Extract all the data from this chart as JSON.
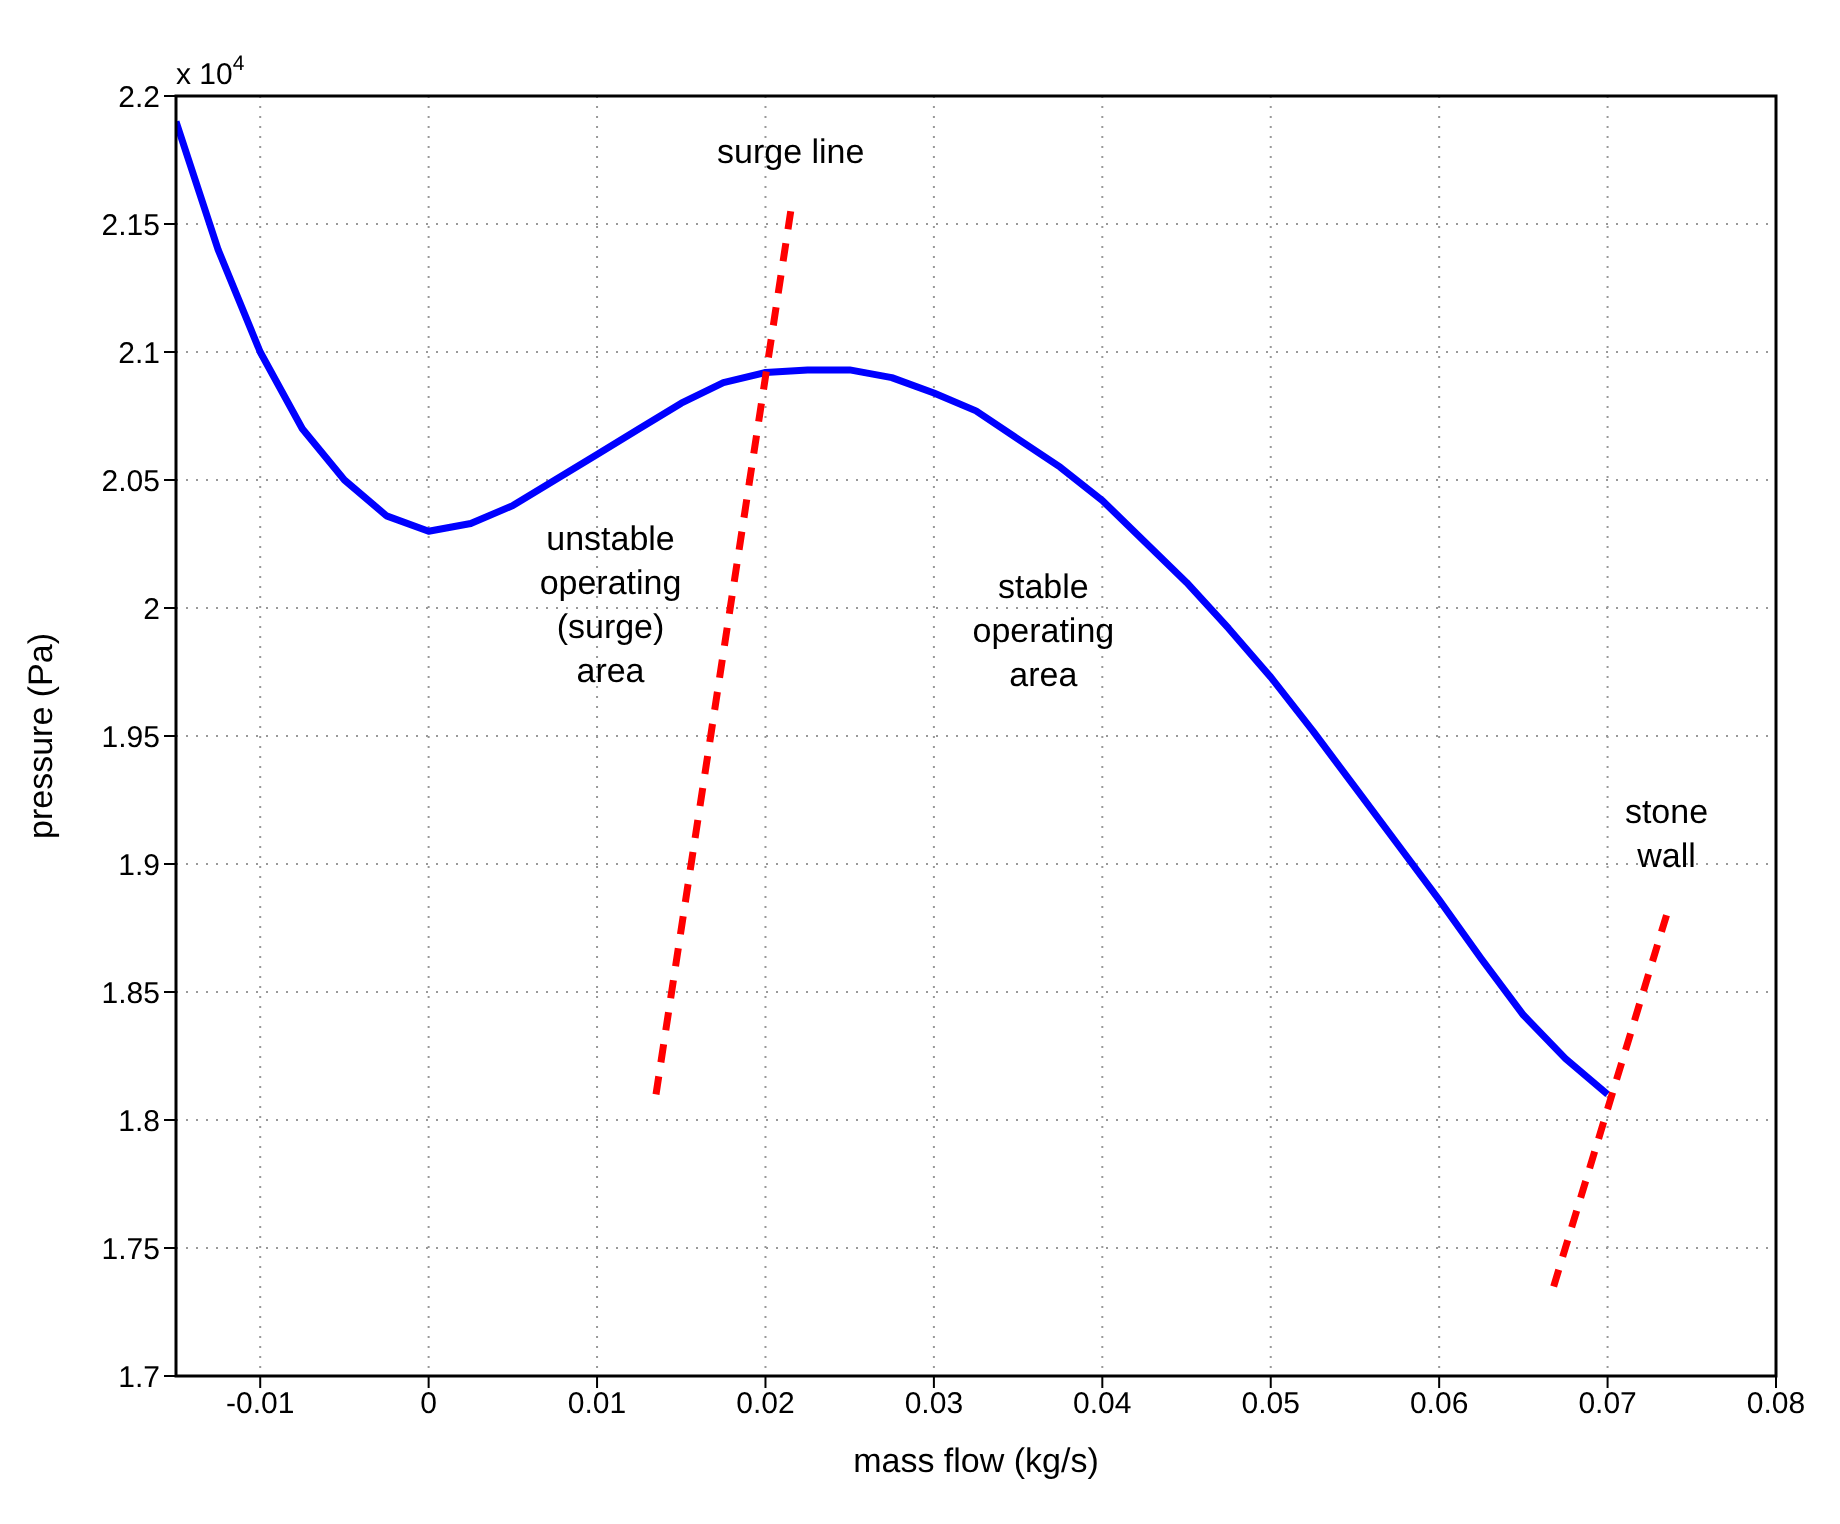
{
  "chart_data": {
    "type": "line",
    "xlabel": "mass flow (kg/s)",
    "ylabel": "pressure (Pa)",
    "xlim": [
      -0.015,
      0.08
    ],
    "xticks": [
      -0.01,
      0,
      0.01,
      0.02,
      0.03,
      0.04,
      0.05,
      0.06,
      0.07,
      0.08
    ],
    "ylim": [
      1.7,
      2.2
    ],
    "yticks": [
      1.7,
      1.75,
      1.8,
      1.85,
      1.9,
      1.95,
      2,
      2.05,
      2.1,
      2.15,
      2.2
    ],
    "grid": true,
    "series": [
      {
        "color": "#0000ff",
        "line_style": "solid",
        "x": [
          -0.015,
          -0.0125,
          -0.01,
          -0.0075,
          -0.005,
          -0.0025,
          0,
          0.0025,
          0.005,
          0.0075,
          0.01,
          0.0125,
          0.015,
          0.0175,
          0.02,
          0.0225,
          0.025,
          0.0275,
          0.03,
          0.0325,
          0.035,
          0.0375,
          0.04,
          0.0425,
          0.045,
          0.0475,
          0.05,
          0.0525,
          0.055,
          0.0575,
          0.06,
          0.0625,
          0.065,
          0.0675,
          0.07
        ],
        "values": [
          2.19,
          2.14,
          2.1,
          2.07,
          2.05,
          2.036,
          2.03,
          2.033,
          2.04,
          2.05,
          2.06,
          2.07,
          2.08,
          2.088,
          2.092,
          2.093,
          2.093,
          2.09,
          2.084,
          2.077,
          2.066,
          2.055,
          2.042,
          2.026,
          2.01,
          1.992,
          1.973,
          1.952,
          1.93,
          1.908,
          1.886,
          1.863,
          1.841,
          1.824,
          1.81
        ]
      },
      {
        "type": "line",
        "name": "surge line",
        "color": "#ff0000",
        "line_style": "dashed",
        "x": [
          0.0135,
          0.0215
        ],
        "values": [
          1.81,
          2.155
        ]
      },
      {
        "type": "line",
        "name": "stone wall",
        "color": "#ff0000",
        "line_style": "dashed",
        "x": [
          0.0668,
          0.0735
        ],
        "values": [
          1.735,
          1.88
        ]
      }
    ],
    "annotations": [
      "x 10$^{4}$",
      "unstable\noperating\n(surge)\narea",
      "stable\noperating\narea"
    ]
  }
}
